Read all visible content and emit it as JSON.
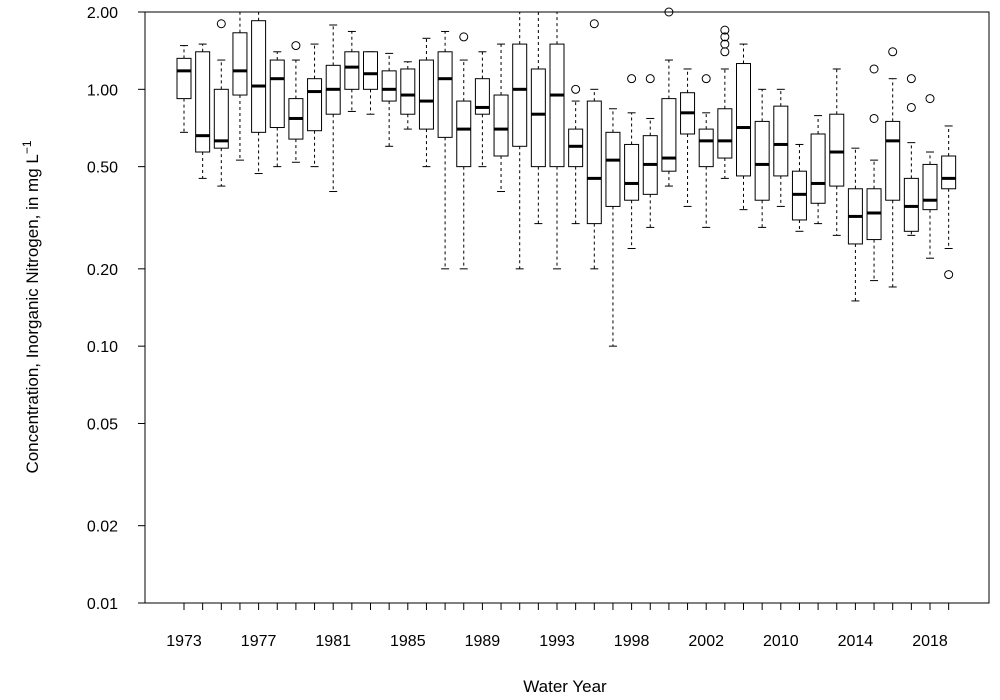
{
  "chart_data": {
    "type": "boxplot",
    "xlabel": "Water Year",
    "ylabel_main": "Concentration, Inorganic Nitrogen, in mg L",
    "ylabel_superscript": "−1",
    "y_scale": "log",
    "ylim": [
      0.01,
      2.0
    ],
    "y_ticks": [
      {
        "value": 0.01,
        "label": "0.01"
      },
      {
        "value": 0.02,
        "label": "0.02"
      },
      {
        "value": 0.05,
        "label": "0.05"
      },
      {
        "value": 0.1,
        "label": "0.10"
      },
      {
        "value": 0.2,
        "label": "0.20"
      },
      {
        "value": 0.5,
        "label": "0.50"
      },
      {
        "value": 1.0,
        "label": "1.00"
      },
      {
        "value": 2.0,
        "label": "2.00"
      }
    ],
    "x_tick_labels": [
      {
        "index": 0,
        "label": "1973"
      },
      {
        "index": 4,
        "label": "1977"
      },
      {
        "index": 8,
        "label": "1981"
      },
      {
        "index": 12,
        "label": "1985"
      },
      {
        "index": 16,
        "label": "1989"
      },
      {
        "index": 20,
        "label": "1993"
      },
      {
        "index": 24,
        "label": "1998"
      },
      {
        "index": 28,
        "label": "2002"
      },
      {
        "index": 32,
        "label": "2010"
      },
      {
        "index": 36,
        "label": "2014"
      },
      {
        "index": 40,
        "label": "2018"
      }
    ],
    "box_count": 42,
    "grid": false,
    "boxes": [
      {
        "min": 0.68,
        "q1": 0.92,
        "median": 1.18,
        "q3": 1.32,
        "max": 1.48,
        "outliers": []
      },
      {
        "min": 0.45,
        "q1": 0.57,
        "median": 0.66,
        "q3": 1.4,
        "max": 1.5,
        "outliers": []
      },
      {
        "min": 0.42,
        "q1": 0.59,
        "median": 0.63,
        "q3": 1.0,
        "max": 1.3,
        "outliers": [
          1.8
        ]
      },
      {
        "min": 0.53,
        "q1": 0.95,
        "median": 1.18,
        "q3": 1.66,
        "max": 2.0,
        "outliers": []
      },
      {
        "min": 0.47,
        "q1": 0.68,
        "median": 1.03,
        "q3": 1.85,
        "max": 2.0,
        "outliers": []
      },
      {
        "min": 0.5,
        "q1": 0.71,
        "median": 1.1,
        "q3": 1.3,
        "max": 1.4,
        "outliers": []
      },
      {
        "min": 0.52,
        "q1": 0.64,
        "median": 0.77,
        "q3": 0.92,
        "max": 1.3,
        "outliers": [
          1.48
        ]
      },
      {
        "min": 0.5,
        "q1": 0.69,
        "median": 0.98,
        "q3": 1.1,
        "max": 1.5,
        "outliers": []
      },
      {
        "min": 0.4,
        "q1": 0.8,
        "median": 1.0,
        "q3": 1.24,
        "max": 1.78,
        "outliers": []
      },
      {
        "min": 0.82,
        "q1": 1.0,
        "median": 1.22,
        "q3": 1.4,
        "max": 1.68,
        "outliers": []
      },
      {
        "min": 0.8,
        "q1": 1.0,
        "median": 1.15,
        "q3": 1.4,
        "max": 1.4,
        "outliers": []
      },
      {
        "min": 0.6,
        "q1": 0.9,
        "median": 1.0,
        "q3": 1.18,
        "max": 1.38,
        "outliers": []
      },
      {
        "min": 0.7,
        "q1": 0.8,
        "median": 0.95,
        "q3": 1.2,
        "max": 1.28,
        "outliers": []
      },
      {
        "min": 0.5,
        "q1": 0.7,
        "median": 0.9,
        "q3": 1.3,
        "max": 1.58,
        "outliers": []
      },
      {
        "min": 0.2,
        "q1": 0.65,
        "median": 1.1,
        "q3": 1.4,
        "max": 1.68,
        "outliers": []
      },
      {
        "min": 0.2,
        "q1": 0.5,
        "median": 0.7,
        "q3": 0.9,
        "max": 1.3,
        "outliers": [
          1.6
        ]
      },
      {
        "min": 0.5,
        "q1": 0.8,
        "median": 0.85,
        "q3": 1.1,
        "max": 1.4,
        "outliers": []
      },
      {
        "min": 0.4,
        "q1": 0.55,
        "median": 0.7,
        "q3": 0.95,
        "max": 1.5,
        "outliers": []
      },
      {
        "min": 0.2,
        "q1": 0.6,
        "median": 1.0,
        "q3": 1.5,
        "max": 2.0,
        "outliers": []
      },
      {
        "min": 0.3,
        "q1": 0.5,
        "median": 0.8,
        "q3": 1.2,
        "max": 2.0,
        "outliers": []
      },
      {
        "min": 0.2,
        "q1": 0.5,
        "median": 0.95,
        "q3": 1.5,
        "max": 2.0,
        "outliers": []
      },
      {
        "min": 0.3,
        "q1": 0.5,
        "median": 0.6,
        "q3": 0.7,
        "max": 0.9,
        "outliers": [
          1.0
        ]
      },
      {
        "min": 0.2,
        "q1": 0.3,
        "median": 0.45,
        "q3": 0.9,
        "max": 1.0,
        "outliers": [
          1.8
        ]
      },
      {
        "min": 0.1,
        "q1": 0.35,
        "median": 0.53,
        "q3": 0.68,
        "max": 0.84,
        "outliers": []
      },
      {
        "min": 0.24,
        "q1": 0.37,
        "median": 0.43,
        "q3": 0.61,
        "max": 0.81,
        "outliers": [
          1.1
        ]
      },
      {
        "min": 0.29,
        "q1": 0.39,
        "median": 0.51,
        "q3": 0.66,
        "max": 0.77,
        "outliers": [
          1.1
        ]
      },
      {
        "min": 0.42,
        "q1": 0.48,
        "median": 0.54,
        "q3": 0.92,
        "max": 1.3,
        "outliers": [
          2.0
        ]
      },
      {
        "min": 0.35,
        "q1": 0.67,
        "median": 0.81,
        "q3": 0.97,
        "max": 1.2,
        "outliers": []
      },
      {
        "min": 0.29,
        "q1": 0.5,
        "median": 0.63,
        "q3": 0.7,
        "max": 0.81,
        "outliers": [
          1.1
        ]
      },
      {
        "min": 0.45,
        "q1": 0.54,
        "median": 0.63,
        "q3": 0.84,
        "max": 1.2,
        "outliers": [
          1.4,
          1.5,
          1.6,
          1.7
        ]
      },
      {
        "min": 0.34,
        "q1": 0.46,
        "median": 0.71,
        "q3": 1.26,
        "max": 1.5,
        "outliers": []
      },
      {
        "min": 0.29,
        "q1": 0.37,
        "median": 0.51,
        "q3": 0.75,
        "max": 1.0,
        "outliers": []
      },
      {
        "min": 0.35,
        "q1": 0.46,
        "median": 0.61,
        "q3": 0.86,
        "max": 1.0,
        "outliers": []
      },
      {
        "min": 0.28,
        "q1": 0.31,
        "median": 0.39,
        "q3": 0.48,
        "max": 0.61,
        "outliers": []
      },
      {
        "min": 0.3,
        "q1": 0.36,
        "median": 0.43,
        "q3": 0.67,
        "max": 0.79,
        "outliers": []
      },
      {
        "min": 0.27,
        "q1": 0.42,
        "median": 0.57,
        "q3": 0.8,
        "max": 1.2,
        "outliers": []
      },
      {
        "min": 0.15,
        "q1": 0.25,
        "median": 0.32,
        "q3": 0.41,
        "max": 0.59,
        "outliers": []
      },
      {
        "min": 0.18,
        "q1": 0.26,
        "median": 0.33,
        "q3": 0.41,
        "max": 0.53,
        "outliers": [
          0.77,
          1.2
        ]
      },
      {
        "min": 0.17,
        "q1": 0.37,
        "median": 0.63,
        "q3": 0.75,
        "max": 1.1,
        "outliers": [
          1.4
        ]
      },
      {
        "min": 0.27,
        "q1": 0.28,
        "median": 0.35,
        "q3": 0.45,
        "max": 0.62,
        "outliers": [
          0.85,
          1.1
        ]
      },
      {
        "min": 0.22,
        "q1": 0.34,
        "median": 0.37,
        "q3": 0.51,
        "max": 0.57,
        "outliers": [
          0.92
        ]
      },
      {
        "min": 0.24,
        "q1": 0.41,
        "median": 0.45,
        "q3": 0.55,
        "max": 0.72,
        "outliers": [
          0.19
        ]
      }
    ]
  }
}
